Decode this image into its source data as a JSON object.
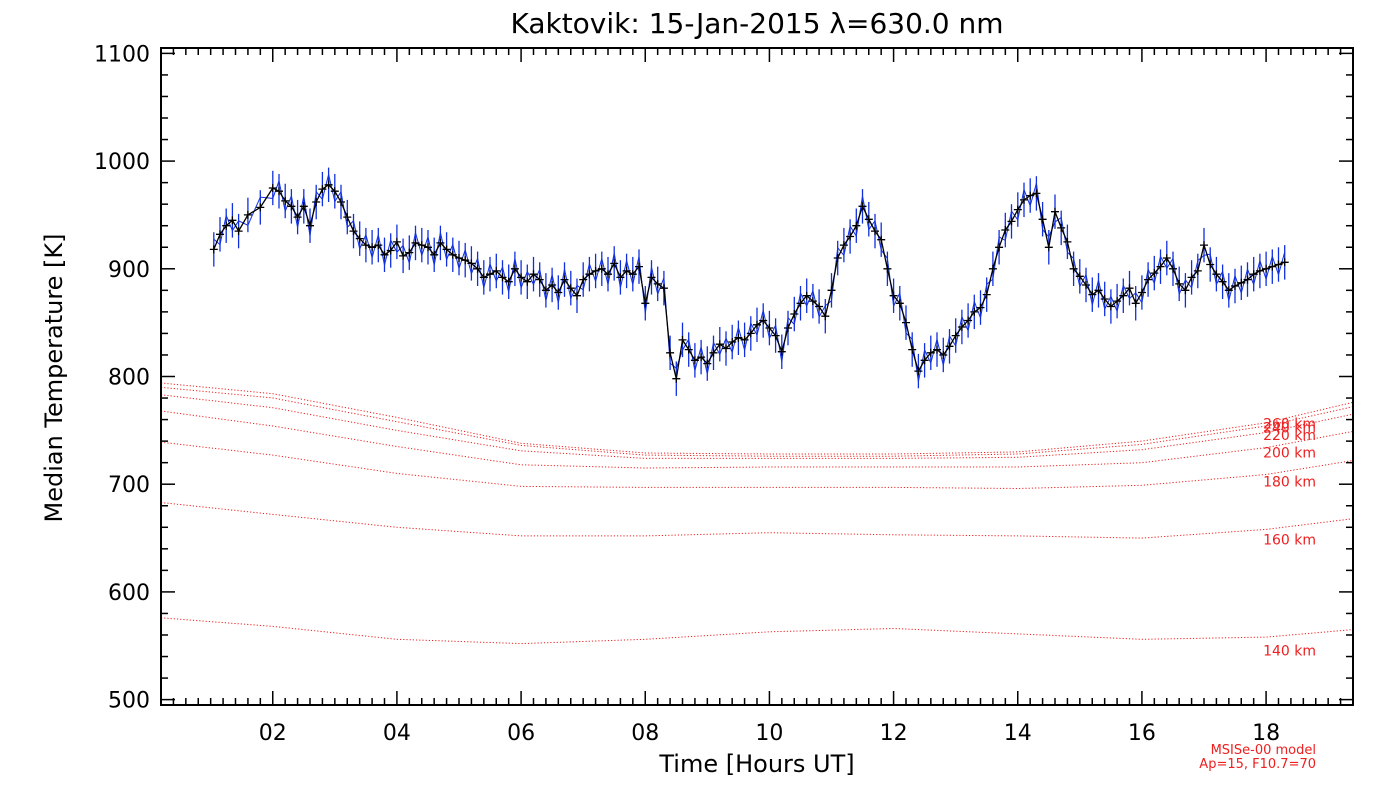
{
  "chart_data": {
    "type": "line",
    "title": "Kaktovik: 15-Jan-2015 λ=630.0 nm",
    "xlabel": "Time [Hours UT]",
    "ylabel": "Median Temperature [K]",
    "xlim": [
      0.2,
      19.4
    ],
    "ylim": [
      495,
      1105
    ],
    "x_ticks": [
      2,
      4,
      6,
      8,
      10,
      12,
      14,
      16,
      18
    ],
    "x_tick_labels": [
      "02",
      "04",
      "06",
      "08",
      "10",
      "12",
      "14",
      "16",
      "18"
    ],
    "y_ticks": [
      500,
      600,
      700,
      800,
      900,
      1000,
      1100
    ],
    "y_tick_labels": [
      "500",
      "600",
      "700",
      "800",
      "900",
      "1000",
      "1100"
    ],
    "grid": false,
    "measured": {
      "color": "#000000",
      "error_color": "#1030e0",
      "error_bar": 16,
      "points": [
        [
          1.05,
          918
        ],
        [
          1.15,
          932
        ],
        [
          1.25,
          940
        ],
        [
          1.35,
          945
        ],
        [
          1.45,
          935
        ],
        [
          1.6,
          950
        ],
        [
          1.8,
          957
        ],
        [
          2.0,
          975
        ],
        [
          2.1,
          972
        ],
        [
          2.2,
          963
        ],
        [
          2.3,
          958
        ],
        [
          2.4,
          948
        ],
        [
          2.5,
          958
        ],
        [
          2.6,
          940
        ],
        [
          2.7,
          962
        ],
        [
          2.8,
          974
        ],
        [
          2.9,
          978
        ],
        [
          3.0,
          972
        ],
        [
          3.1,
          962
        ],
        [
          3.2,
          948
        ],
        [
          3.3,
          935
        ],
        [
          3.4,
          928
        ],
        [
          3.5,
          922
        ],
        [
          3.6,
          920
        ],
        [
          3.7,
          922
        ],
        [
          3.8,
          913
        ],
        [
          3.9,
          917
        ],
        [
          4.0,
          925
        ],
        [
          4.1,
          912
        ],
        [
          4.2,
          915
        ],
        [
          4.3,
          924
        ],
        [
          4.4,
          922
        ],
        [
          4.5,
          920
        ],
        [
          4.6,
          913
        ],
        [
          4.7,
          924
        ],
        [
          4.8,
          918
        ],
        [
          4.9,
          913
        ],
        [
          5.0,
          910
        ],
        [
          5.1,
          908
        ],
        [
          5.2,
          905
        ],
        [
          5.3,
          900
        ],
        [
          5.4,
          892
        ],
        [
          5.5,
          895
        ],
        [
          5.6,
          898
        ],
        [
          5.7,
          892
        ],
        [
          5.8,
          888
        ],
        [
          5.9,
          900
        ],
        [
          6.0,
          892
        ],
        [
          6.1,
          888
        ],
        [
          6.2,
          895
        ],
        [
          6.3,
          890
        ],
        [
          6.4,
          880
        ],
        [
          6.5,
          885
        ],
        [
          6.6,
          878
        ],
        [
          6.7,
          890
        ],
        [
          6.8,
          882
        ],
        [
          6.9,
          875
        ],
        [
          7.0,
          890
        ],
        [
          7.1,
          895
        ],
        [
          7.2,
          898
        ],
        [
          7.3,
          900
        ],
        [
          7.4,
          895
        ],
        [
          7.5,
          905
        ],
        [
          7.6,
          892
        ],
        [
          7.7,
          898
        ],
        [
          7.8,
          895
        ],
        [
          7.9,
          902
        ],
        [
          8.0,
          868
        ],
        [
          8.1,
          892
        ],
        [
          8.2,
          886
        ],
        [
          8.3,
          882
        ],
        [
          8.4,
          822
        ],
        [
          8.5,
          798
        ],
        [
          8.6,
          834
        ],
        [
          8.7,
          825
        ],
        [
          8.8,
          815
        ],
        [
          8.9,
          818
        ],
        [
          9.0,
          812
        ],
        [
          9.1,
          822
        ],
        [
          9.2,
          830
        ],
        [
          9.3,
          826
        ],
        [
          9.4,
          832
        ],
        [
          9.5,
          836
        ],
        [
          9.6,
          834
        ],
        [
          9.7,
          840
        ],
        [
          9.8,
          848
        ],
        [
          9.9,
          852
        ],
        [
          10.0,
          845
        ],
        [
          10.1,
          838
        ],
        [
          10.2,
          823
        ],
        [
          10.3,
          845
        ],
        [
          10.4,
          858
        ],
        [
          10.5,
          868
        ],
        [
          10.6,
          875
        ],
        [
          10.7,
          870
        ],
        [
          10.8,
          865
        ],
        [
          10.9,
          856
        ],
        [
          11.0,
          880
        ],
        [
          11.1,
          910
        ],
        [
          11.2,
          922
        ],
        [
          11.3,
          930
        ],
        [
          11.4,
          940
        ],
        [
          11.5,
          958
        ],
        [
          11.6,
          946
        ],
        [
          11.7,
          935
        ],
        [
          11.8,
          927
        ],
        [
          11.9,
          900
        ],
        [
          12.0,
          875
        ],
        [
          12.1,
          868
        ],
        [
          12.2,
          850
        ],
        [
          12.3,
          825
        ],
        [
          12.4,
          805
        ],
        [
          12.5,
          815
        ],
        [
          12.6,
          822
        ],
        [
          12.7,
          825
        ],
        [
          12.8,
          820
        ],
        [
          12.9,
          828
        ],
        [
          13.0,
          838
        ],
        [
          13.1,
          846
        ],
        [
          13.2,
          852
        ],
        [
          13.3,
          860
        ],
        [
          13.4,
          864
        ],
        [
          13.5,
          876
        ],
        [
          13.6,
          900
        ],
        [
          13.7,
          920
        ],
        [
          13.8,
          936
        ],
        [
          13.9,
          944
        ],
        [
          14.0,
          955
        ],
        [
          14.1,
          964
        ],
        [
          14.2,
          968
        ],
        [
          14.3,
          970
        ],
        [
          14.4,
          946
        ],
        [
          14.5,
          920
        ],
        [
          14.6,
          953
        ],
        [
          14.7,
          938
        ],
        [
          14.8,
          925
        ],
        [
          14.9,
          900
        ],
        [
          15.0,
          893
        ],
        [
          15.1,
          885
        ],
        [
          15.2,
          876
        ],
        [
          15.3,
          880
        ],
        [
          15.4,
          872
        ],
        [
          15.5,
          865
        ],
        [
          15.6,
          870
        ],
        [
          15.7,
          875
        ],
        [
          15.8,
          882
        ],
        [
          15.9,
          868
        ],
        [
          16.0,
          878
        ],
        [
          16.1,
          890
        ],
        [
          16.2,
          896
        ],
        [
          16.3,
          902
        ],
        [
          16.4,
          910
        ],
        [
          16.5,
          900
        ],
        [
          16.6,
          886
        ],
        [
          16.7,
          880
        ],
        [
          16.8,
          892
        ],
        [
          16.9,
          898
        ],
        [
          17.0,
          922
        ],
        [
          17.1,
          904
        ],
        [
          17.2,
          895
        ],
        [
          17.3,
          888
        ],
        [
          17.4,
          880
        ],
        [
          17.5,
          884
        ],
        [
          17.6,
          887
        ],
        [
          17.7,
          890
        ],
        [
          17.8,
          895
        ],
        [
          17.9,
          898
        ],
        [
          18.0,
          900
        ],
        [
          18.1,
          902
        ],
        [
          18.2,
          904
        ],
        [
          18.3,
          906
        ]
      ]
    },
    "model": {
      "label_line1": "MSISe-00 model",
      "label_line2": "Ap=15, F10.7=70",
      "color": "#ee2020",
      "x": [
        0.2,
        2.0,
        4.0,
        6.0,
        8.0,
        10.0,
        12.0,
        14.0,
        16.0,
        18.0,
        19.4
      ],
      "series": [
        {
          "name": "140 km",
          "values": [
            576,
            568,
            556,
            552,
            556,
            563,
            566,
            561,
            556,
            558,
            565
          ]
        },
        {
          "name": "160 km",
          "values": [
            683,
            672,
            660,
            652,
            652,
            655,
            653,
            652,
            650,
            658,
            668
          ]
        },
        {
          "name": "180 km",
          "values": [
            739,
            727,
            710,
            698,
            697,
            697,
            697,
            696,
            699,
            709,
            722
          ]
        },
        {
          "name": "200 km",
          "values": [
            768,
            754,
            735,
            718,
            715,
            716,
            716,
            716,
            720,
            734,
            749
          ]
        },
        {
          "name": "220 km",
          "values": [
            783,
            771,
            750,
            731,
            724,
            724,
            724,
            725,
            732,
            748,
            765
          ]
        },
        {
          "name": "240 km",
          "values": [
            790,
            780,
            758,
            736,
            727,
            726,
            726,
            728,
            737,
            754,
            772
          ]
        },
        {
          "name": "260 km",
          "values": [
            794,
            784,
            762,
            738,
            729,
            728,
            728,
            730,
            740,
            757,
            776
          ]
        }
      ]
    }
  }
}
